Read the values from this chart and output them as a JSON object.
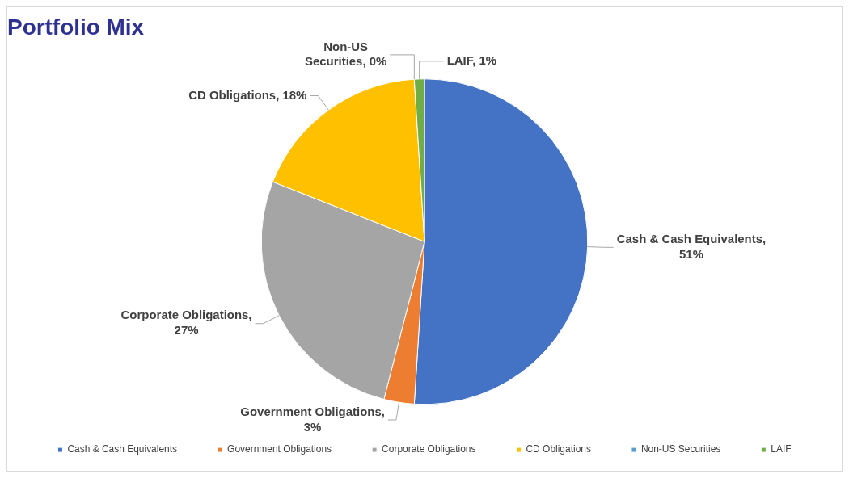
{
  "chart_data": {
    "type": "pie",
    "title": "Portfolio Mix",
    "categories": [
      "Cash & Cash Equivalents",
      "Government Obligations",
      "Corporate Obligations",
      "CD Obligations",
      "Non-US Securities",
      "LAIF"
    ],
    "values": [
      51,
      3,
      27,
      18,
      0,
      1
    ],
    "colors": [
      "#4472c4",
      "#ed7d31",
      "#a5a5a5",
      "#ffc000",
      "#5b9bd5",
      "#70ad47"
    ],
    "value_labels": [
      ", 51%",
      ", 3%",
      ", 27%",
      ", 18%",
      ", 0%",
      ", 1%"
    ],
    "data_labels": true,
    "legend": "bottom"
  }
}
